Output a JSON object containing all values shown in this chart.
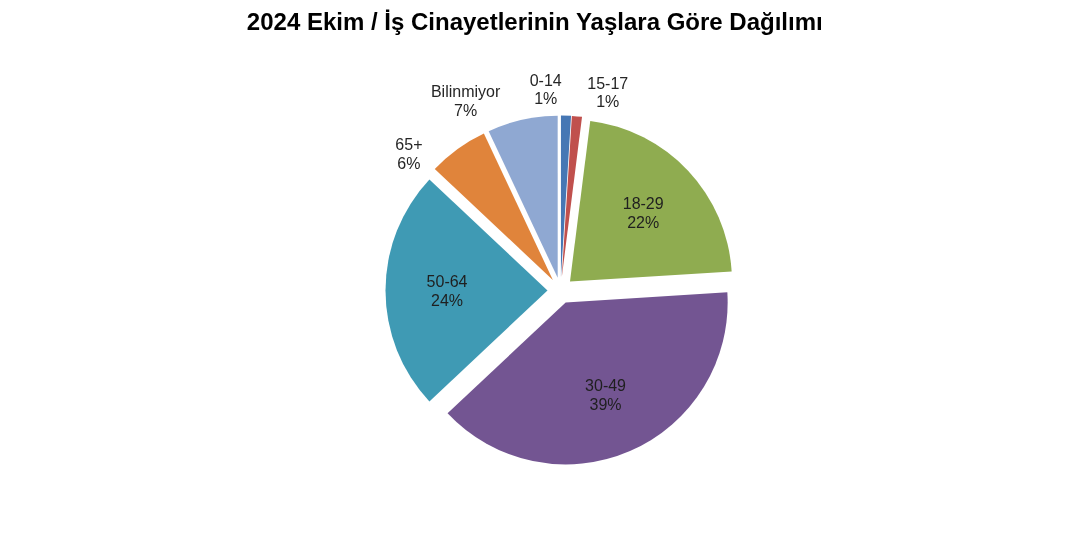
{
  "chart_data": {
    "type": "pie",
    "title": "2024 Ekim / İş Cinayetlerinin Yaşlara Göre Dağılımı",
    "categories": [
      "0-14",
      "15-17",
      "18-29",
      "30-49",
      "50-64",
      "65+",
      "Bilinmiyor"
    ],
    "values": [
      1,
      1,
      22,
      39,
      24,
      6,
      7
    ],
    "colors": [
      "#4677b4",
      "#c0504d",
      "#8fac50",
      "#735592",
      "#3f9ab4",
      "#e0843b",
      "#8fa8d2"
    ],
    "value_labels": [
      "1%",
      "1%",
      "22%",
      "39%",
      "24%",
      "6%",
      "7%"
    ]
  }
}
